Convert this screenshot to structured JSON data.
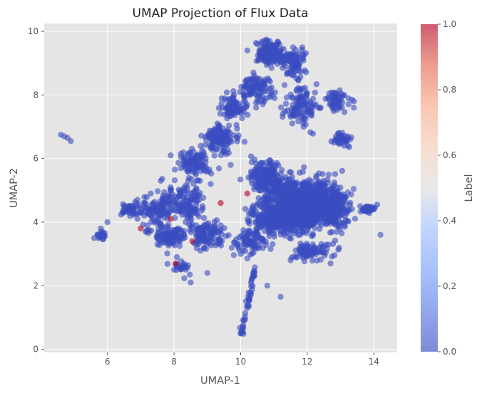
{
  "chart_data": {
    "type": "scatter",
    "title": "UMAP Projection of Flux Data",
    "xlabel": "UMAP-1",
    "ylabel": "UMAP-2",
    "xlim": [
      4.1,
      14.7
    ],
    "ylim": [
      -0.1,
      10.25
    ],
    "xticks": [
      6,
      8,
      10,
      12,
      14
    ],
    "yticks": [
      0,
      2,
      4,
      6,
      8,
      10
    ],
    "grid": true,
    "colorbar": {
      "label": "Label",
      "range": [
        0.0,
        1.0
      ],
      "ticks": [
        "0.0",
        "0.2",
        "0.4",
        "0.6",
        "0.8",
        "1.0"
      ],
      "colormap": "coolwarm",
      "low_color": "#3b4cc0",
      "high_color": "#b40426"
    },
    "colors": {
      "plot_background": "#e5e5e5",
      "grid": "#ffffff",
      "point_label_0": "#3b4cc0",
      "point_label_1": "#b40426"
    },
    "points_label_1": [
      {
        "x": 7.0,
        "y": 3.8,
        "label": 1
      },
      {
        "x": 7.9,
        "y": 4.1,
        "label": 1
      },
      {
        "x": 8.05,
        "y": 2.7,
        "label": 1
      },
      {
        "x": 8.55,
        "y": 3.4,
        "label": 1
      },
      {
        "x": 10.2,
        "y": 4.9,
        "label": 1
      },
      {
        "x": 9.4,
        "y": 4.6,
        "label": 1
      }
    ],
    "points_label_0": [
      {
        "x": 4.6,
        "y": 6.75,
        "label": 0
      },
      {
        "x": 4.7,
        "y": 6.7,
        "label": 0
      },
      {
        "x": 4.8,
        "y": 6.65,
        "label": 0
      },
      {
        "x": 4.9,
        "y": 6.55,
        "label": 0
      },
      {
        "x": 5.6,
        "y": 3.5,
        "label": 0
      },
      {
        "x": 5.7,
        "y": 3.6,
        "label": 0
      },
      {
        "x": 5.8,
        "y": 3.8,
        "label": 0
      },
      {
        "x": 6.0,
        "y": 4.0,
        "label": 0
      },
      {
        "x": 6.5,
        "y": 4.5,
        "label": 0
      },
      {
        "x": 6.7,
        "y": 4.3,
        "label": 0
      },
      {
        "x": 6.9,
        "y": 4.7,
        "label": 0
      },
      {
        "x": 7.2,
        "y": 3.9,
        "label": 0
      },
      {
        "x": 7.3,
        "y": 4.9,
        "label": 0
      },
      {
        "x": 7.5,
        "y": 3.3,
        "label": 0
      },
      {
        "x": 7.6,
        "y": 5.3,
        "label": 0
      },
      {
        "x": 7.8,
        "y": 4.6,
        "label": 0
      },
      {
        "x": 7.9,
        "y": 6.1,
        "label": 0
      },
      {
        "x": 8.0,
        "y": 2.5,
        "label": 0
      },
      {
        "x": 8.2,
        "y": 5.7,
        "label": 0
      },
      {
        "x": 8.3,
        "y": 3.6,
        "label": 0
      },
      {
        "x": 8.5,
        "y": 2.1,
        "label": 0
      },
      {
        "x": 8.6,
        "y": 4.4,
        "label": 0
      },
      {
        "x": 8.8,
        "y": 6.4,
        "label": 0
      },
      {
        "x": 8.9,
        "y": 3.2,
        "label": 0
      },
      {
        "x": 9.0,
        "y": 2.4,
        "label": 0
      },
      {
        "x": 9.1,
        "y": 5.2,
        "label": 0
      },
      {
        "x": 9.3,
        "y": 7.1,
        "label": 0
      },
      {
        "x": 9.4,
        "y": 3.9,
        "label": 0
      },
      {
        "x": 9.6,
        "y": 7.6,
        "label": 0
      },
      {
        "x": 9.7,
        "y": 5.8,
        "label": 0
      },
      {
        "x": 9.8,
        "y": 8.0,
        "label": 0
      },
      {
        "x": 9.9,
        "y": 3.3,
        "label": 0
      },
      {
        "x": 10.0,
        "y": 0.5,
        "label": 0
      },
      {
        "x": 10.1,
        "y": 0.9,
        "label": 0
      },
      {
        "x": 10.2,
        "y": 1.3,
        "label": 0
      },
      {
        "x": 10.3,
        "y": 1.7,
        "label": 0
      },
      {
        "x": 10.4,
        "y": 2.3,
        "label": 0
      },
      {
        "x": 10.2,
        "y": 9.4,
        "label": 0
      },
      {
        "x": 10.5,
        "y": 9.6,
        "label": 0
      },
      {
        "x": 10.8,
        "y": 9.7,
        "label": 0
      },
      {
        "x": 11.1,
        "y": 9.6,
        "label": 0
      },
      {
        "x": 11.4,
        "y": 9.3,
        "label": 0
      },
      {
        "x": 11.2,
        "y": 1.65,
        "label": 0
      },
      {
        "x": 10.8,
        "y": 2.0,
        "label": 0
      },
      {
        "x": 12.0,
        "y": 4.5,
        "label": 0
      },
      {
        "x": 12.5,
        "y": 5.0,
        "label": 0
      },
      {
        "x": 13.0,
        "y": 4.2,
        "label": 0
      },
      {
        "x": 13.2,
        "y": 6.7,
        "label": 0
      },
      {
        "x": 13.4,
        "y": 7.6,
        "label": 0
      },
      {
        "x": 13.1,
        "y": 8.0,
        "label": 0
      },
      {
        "x": 14.0,
        "y": 4.4,
        "label": 0
      },
      {
        "x": 14.1,
        "y": 4.55,
        "label": 0
      },
      {
        "x": 14.2,
        "y": 3.6,
        "label": 0
      },
      {
        "x": 12.7,
        "y": 2.7,
        "label": 0
      },
      {
        "x": 11.5,
        "y": 2.8,
        "label": 0
      }
    ]
  }
}
